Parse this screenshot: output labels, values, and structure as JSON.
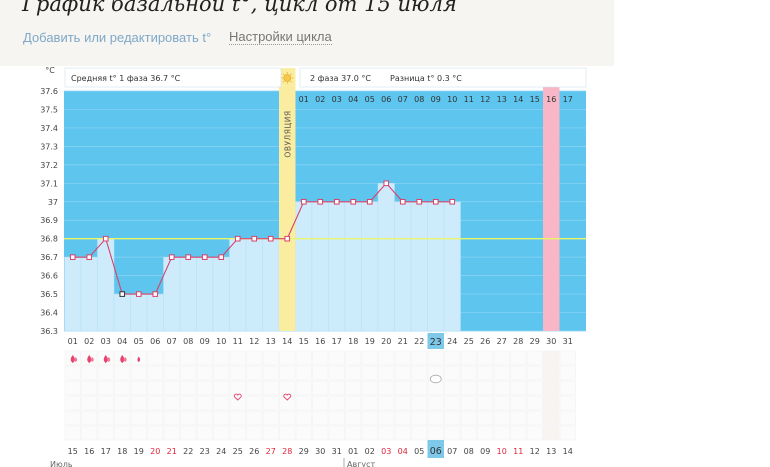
{
  "page": {
    "title": "График базальной t°, цикл от 15 июля",
    "add_link": "Добавить или редактировать t°",
    "settings_link": "Настройки цикла"
  },
  "chart_data": {
    "type": "line",
    "unit_label": "°C",
    "y_ticks": [
      "37.6",
      "37.5",
      "37.4",
      "37.3",
      "37.2",
      "37.1",
      "37",
      "36.9",
      "36.8",
      "36.7",
      "36.6",
      "36.5",
      "36.4",
      "36.3"
    ],
    "ylim": [
      36.3,
      37.6
    ],
    "cycle_days": [
      "01",
      "02",
      "03",
      "04",
      "05",
      "06",
      "07",
      "08",
      "09",
      "10",
      "11",
      "12",
      "13",
      "14",
      "15",
      "16",
      "17",
      "18",
      "19",
      "20",
      "21",
      "22",
      "23",
      "24",
      "25",
      "26",
      "27",
      "28",
      "29",
      "30",
      "31"
    ],
    "temperatures": [
      36.7,
      36.7,
      36.8,
      36.5,
      36.5,
      36.5,
      36.7,
      36.7,
      36.7,
      36.7,
      36.8,
      36.8,
      36.8,
      36.8,
      37.0,
      37.0,
      37.0,
      37.0,
      37.0,
      37.1,
      37.0,
      37.0,
      37.0,
      37.0,
      null,
      null,
      null,
      null,
      null,
      null,
      null
    ],
    "cover_line": 36.8,
    "highlight_today_day": "23",
    "phase1_label": "Средняя t° 1 фаза",
    "phase1_value": "36.7 °C",
    "phase2_label": "2 фаза",
    "phase2_value": "37.0 °C",
    "diff_label": "Разница t°",
    "diff_value": "0.3 °C",
    "ovulation_label": "ОВУЛЯЦИЯ",
    "phase2_days": [
      "01",
      "02",
      "03",
      "04",
      "05",
      "06",
      "07",
      "08",
      "09",
      "10",
      "11",
      "12",
      "13",
      "14",
      "15",
      "16",
      "17"
    ],
    "phase2_highlight_day": "16",
    "dates": [
      "15",
      "16",
      "17",
      "18",
      "19",
      "20",
      "21",
      "22",
      "23",
      "24",
      "25",
      "26",
      "27",
      "28",
      "29",
      "30",
      "31",
      "01",
      "02",
      "03",
      "04",
      "05",
      "06",
      "07",
      "08",
      "09",
      "10",
      "11",
      "12",
      "13",
      "14"
    ],
    "weekend_date_indices": [
      5,
      6,
      12,
      13,
      19,
      20,
      26,
      27
    ],
    "today_date": "06",
    "month_labels": [
      "Июль",
      "Август"
    ],
    "colors": {
      "chart_bg": "#5ec5ee",
      "bar_fill": "#cdebfb",
      "line": "#d8416a",
      "ovulation": "#fbed9f",
      "phase2_highlight": "#f8b6c6",
      "cover_line": "#e9f56a",
      "today_cell": "#7ec9ea"
    }
  }
}
